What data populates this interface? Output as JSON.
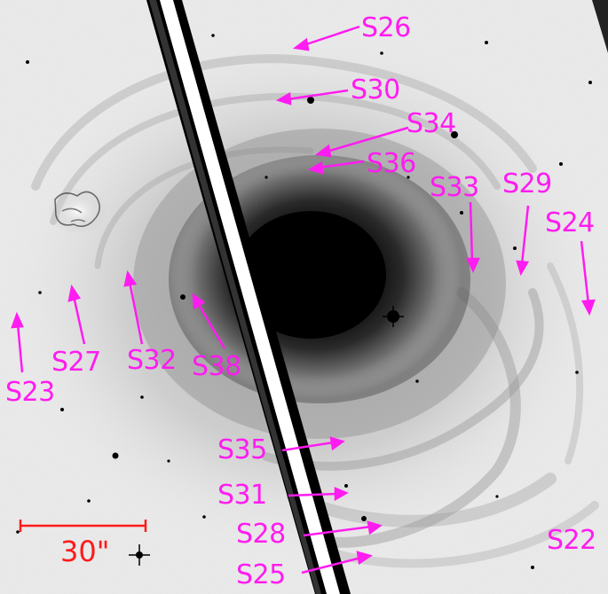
{
  "image": {
    "accent_color": "#ff1cf0",
    "scale_bar_color": "#ff1a1a"
  },
  "scale_bar": {
    "label": "30\""
  },
  "labels": {
    "S22": "S22",
    "S23": "S23",
    "S24": "S24",
    "S25": "S25",
    "S26": "S26",
    "S27": "S27",
    "S28": "S28",
    "S29": "S29",
    "S30": "S30",
    "S31": "S31",
    "S32": "S32",
    "S33": "S33",
    "S34": "S34",
    "S35": "S35",
    "S36": "S36",
    "S38": "S38"
  }
}
